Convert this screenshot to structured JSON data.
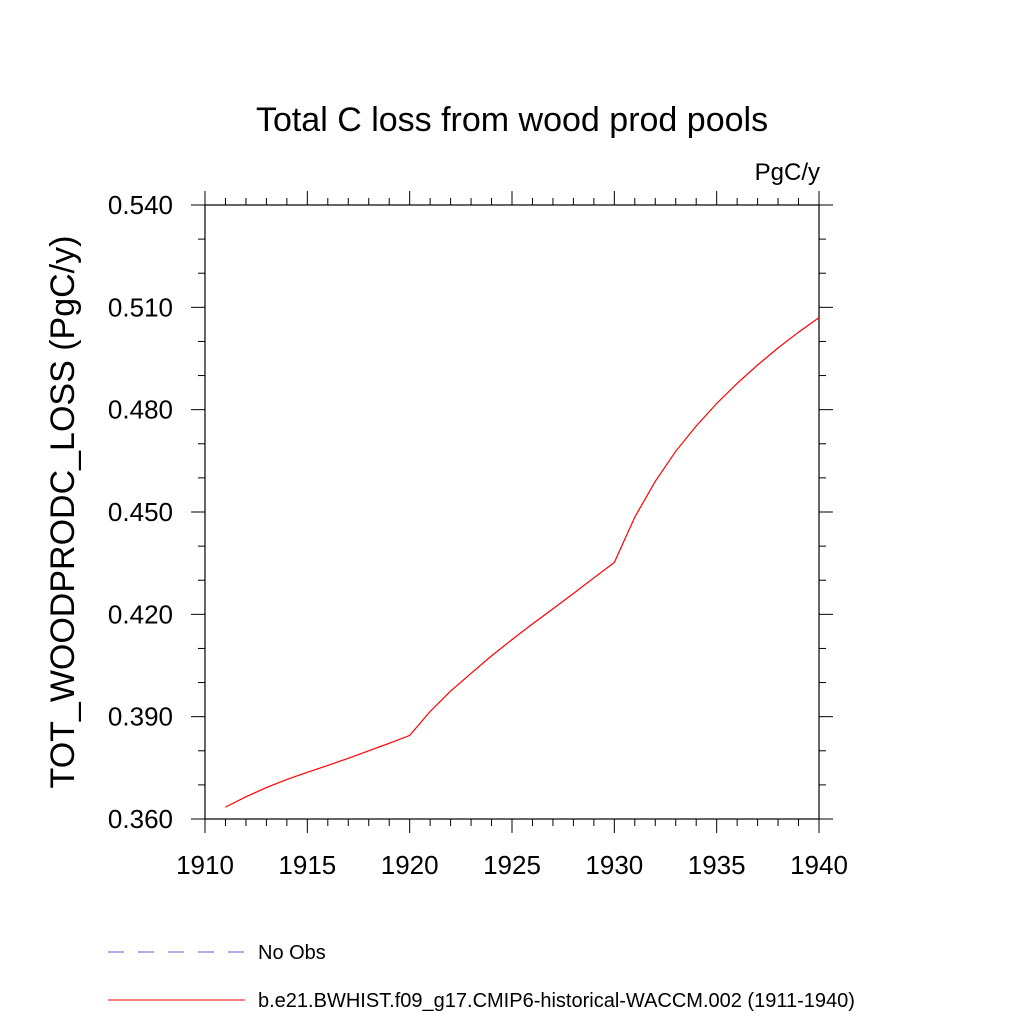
{
  "chart_data": {
    "type": "line",
    "title": "Total C loss from wood prod pools",
    "units_label": "PgC/y",
    "ylabel": "TOT_WOODPRODC_LOSS  (PgC/y)",
    "xlabel": "",
    "xlim": [
      1910,
      1940
    ],
    "ylim": [
      0.36,
      0.54
    ],
    "x_ticks": [
      "1910",
      "1915",
      "1920",
      "1925",
      "1930",
      "1935",
      "1940"
    ],
    "y_ticks": [
      "0.360",
      "0.390",
      "0.420",
      "0.450",
      "0.480",
      "0.510",
      "0.540"
    ],
    "grid": false,
    "legend_position": "bottom-left",
    "series": [
      {
        "name": "No Obs",
        "color": "#6a5acd",
        "dash": "dashed",
        "x": [],
        "y": []
      },
      {
        "name": "b.e21.BWHIST.f09_g17.CMIP6-historical-WACCM.002 (1911-1940)",
        "color": "#ff0000",
        "dash": "solid",
        "x": [
          1911,
          1912,
          1913,
          1914,
          1915,
          1916,
          1917,
          1918,
          1919,
          1920,
          1921,
          1922,
          1923,
          1924,
          1925,
          1926,
          1927,
          1928,
          1929,
          1930,
          1931,
          1932,
          1933,
          1934,
          1935,
          1936,
          1937,
          1938,
          1939,
          1940
        ],
        "y": [
          0.3635,
          0.3665,
          0.3692,
          0.3716,
          0.3737,
          0.3757,
          0.3778,
          0.38,
          0.3822,
          0.3845,
          0.3915,
          0.3975,
          0.4027,
          0.4078,
          0.4126,
          0.4172,
          0.4216,
          0.4261,
          0.4307,
          0.4352,
          0.4485,
          0.459,
          0.4678,
          0.4752,
          0.4818,
          0.4877,
          0.4931,
          0.4981,
          0.5027,
          0.507
        ]
      }
    ]
  }
}
